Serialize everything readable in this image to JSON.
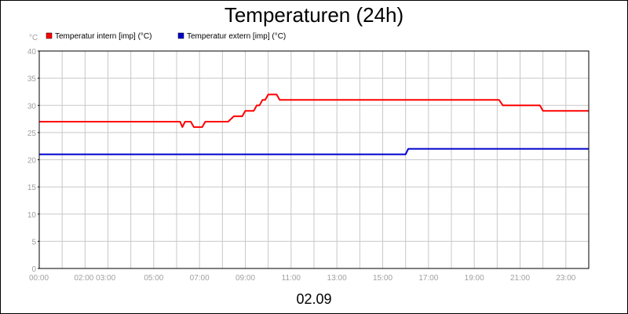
{
  "chart_data": {
    "type": "line",
    "title": "Temperaturen (24h)",
    "ylabel": "°C",
    "xlabel": "02.09",
    "ylim": [
      0,
      40
    ],
    "y_ticks": [
      "0",
      "5",
      "10",
      "15",
      "20",
      "25",
      "30",
      "35",
      "40"
    ],
    "xlim": [
      "00:00",
      "24:00"
    ],
    "x_tick_labels": [
      {
        "t": "00:00",
        "label": "00:00"
      },
      {
        "t": "02:00",
        "label": "02:00 03:00"
      },
      {
        "t": "05:00",
        "label": "05:00"
      },
      {
        "t": "07:00",
        "label": "07:00"
      },
      {
        "t": "09:00",
        "label": "09:00"
      },
      {
        "t": "11:00",
        "label": "11:00"
      },
      {
        "t": "13:00",
        "label": "13:00"
      },
      {
        "t": "15:00",
        "label": "15:00"
      },
      {
        "t": "17:00",
        "label": "17:00"
      },
      {
        "t": "19:00",
        "label": "19:00"
      },
      {
        "t": "21:00",
        "label": "21:00"
      },
      {
        "t": "23:00",
        "label": "23:00"
      }
    ],
    "grid": true,
    "legend_position": "top-left",
    "series": [
      {
        "name": "Temperatur intern [imp] (°C)",
        "color": "#ff0000",
        "points": [
          [
            "00:00",
            27
          ],
          [
            "06:09",
            27
          ],
          [
            "06:15",
            26
          ],
          [
            "06:22",
            27
          ],
          [
            "06:37",
            27
          ],
          [
            "06:45",
            26
          ],
          [
            "07:07",
            26
          ],
          [
            "07:15",
            27
          ],
          [
            "08:15",
            27
          ],
          [
            "08:30",
            28
          ],
          [
            "08:52",
            28
          ],
          [
            "09:00",
            29
          ],
          [
            "09:22",
            29
          ],
          [
            "09:30",
            30
          ],
          [
            "09:37",
            30
          ],
          [
            "09:45",
            31
          ],
          [
            "09:52",
            31
          ],
          [
            "10:00",
            32
          ],
          [
            "10:22",
            32
          ],
          [
            "10:30",
            31
          ],
          [
            "20:05",
            31
          ],
          [
            "20:15",
            30
          ],
          [
            "21:52",
            30
          ],
          [
            "22:00",
            29
          ],
          [
            "24:00",
            29
          ]
        ]
      },
      {
        "name": "Temperatur extern [imp] (°C)",
        "color": "#0000cc",
        "points": [
          [
            "00:00",
            21
          ],
          [
            "16:00",
            21
          ],
          [
            "16:07",
            22
          ],
          [
            "24:00",
            22
          ]
        ]
      }
    ]
  }
}
